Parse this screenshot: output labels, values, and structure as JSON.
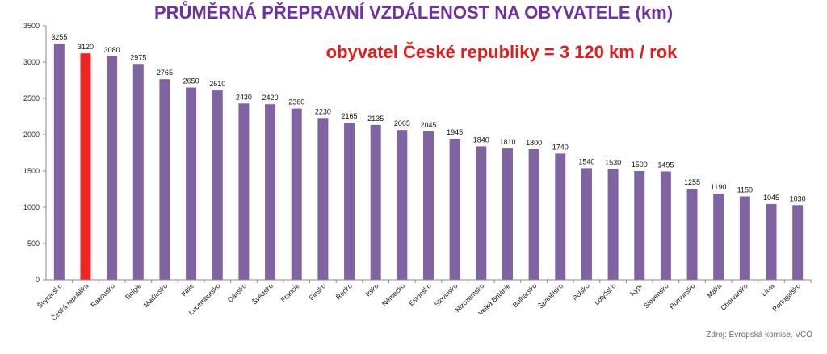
{
  "chart_data": {
    "type": "bar",
    "title": "PRŮMĚRNÁ PŘEPRAVNÍ VZDÁLENOST NA OBYVATELE (km)",
    "annotation": "obyvatel České republiky = 3 120 km / rok",
    "source": "Zdroj: Evropská komise, VCÖ",
    "categories": [
      "Švýcarsko",
      "Česká republika",
      "Rakousko",
      "Belgie",
      "Maďarsko",
      "Itálie",
      "Lucembursko",
      "Dánsko",
      "Švédsko",
      "Francie",
      "Finsko",
      "Řecko",
      "Irsko",
      "Německo",
      "Estonsko",
      "Slovinsko",
      "Nizozemsko",
      "Velká Británie",
      "Bulharsko",
      "Španělsko",
      "Polsko",
      "Lotyšsko",
      "Kypr",
      "Slovensko",
      "Rumunsko",
      "Malta",
      "Chorvatsko",
      "Litva",
      "Portugalsko"
    ],
    "values": [
      3255,
      3120,
      3080,
      2975,
      2765,
      2650,
      2610,
      2430,
      2420,
      2360,
      2230,
      2165,
      2135,
      2065,
      2045,
      1945,
      1840,
      1810,
      1800,
      1740,
      1540,
      1530,
      1500,
      1495,
      1255,
      1190,
      1150,
      1045,
      1030
    ],
    "data_labels": [
      "3255",
      "3120",
      "3080",
      "2975",
      "2765",
      "2650",
      "2610",
      "2430",
      "2420",
      "2360",
      "2230",
      "2165",
      "2135",
      "2065",
      "2045",
      "1945",
      "1840",
      "1810",
      "1800",
      "1740",
      "1540",
      "1530",
      "1500",
      "1495",
      "1255",
      "1190",
      "1150",
      "1045",
      "1030"
    ],
    "highlight_category": "Česká republika",
    "ylim": [
      0,
      3500
    ],
    "yticks": [
      "0",
      "500",
      "1000",
      "1500",
      "2000",
      "2500",
      "3000",
      "3500"
    ],
    "grid": false,
    "colors": {
      "bar": "#8064A2",
      "highlight": "#F02424",
      "title": "#7030A0",
      "annotation": "#E31B1B"
    }
  }
}
